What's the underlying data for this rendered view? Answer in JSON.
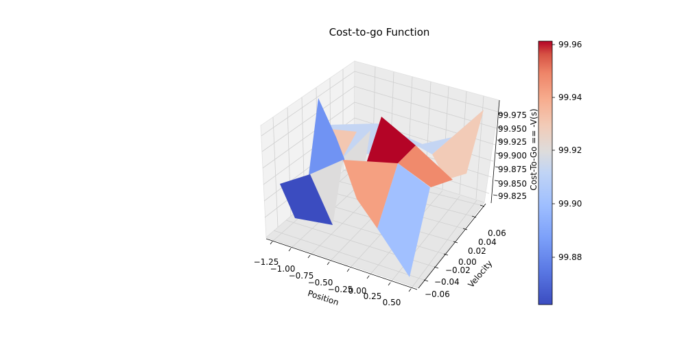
{
  "chart_data": {
    "type": "surface3d",
    "title": "Cost-to-go Function",
    "xlabel": "Position",
    "ylabel": "Velocity",
    "zlabel": "Cost-To-Go == -V(s)",
    "colormap": "coolwarm",
    "x_ticks": [
      "−1.25",
      "−1.00",
      "−0.75",
      "−0.50",
      "−0.25",
      "0.00",
      "0.25",
      "0.50"
    ],
    "y_ticks": [
      "−0.06",
      "−0.04",
      "−0.02",
      "0.00",
      "0.02",
      "0.04",
      "0.06"
    ],
    "z_ticks": [
      "99.825",
      "99.850",
      "99.875",
      "99.900",
      "99.925",
      "99.950",
      "99.975"
    ],
    "colorbar_ticks": [
      "99.88",
      "99.90",
      "99.92",
      "99.94",
      "99.96"
    ],
    "colorbar_range": [
      99.862,
      99.962
    ],
    "x_grid": [
      -1.2,
      -0.35,
      0.5
    ],
    "y_grid": [
      -0.07,
      0.0,
      0.07
    ],
    "z_values": [
      [
        99.985,
        99.86,
        99.83
      ],
      [
        99.925,
        99.955,
        99.86
      ],
      [
        99.925,
        99.9,
        99.98
      ]
    ],
    "cell_colors": [
      [
        "#7093f3",
        "#cad8ef",
        "#3b4cc0",
        "#dddcdc"
      ],
      [
        "#f3c7b1",
        "#dddcdc",
        "#f5a081",
        "#a1c0ff"
      ],
      [
        "#b40426",
        "#f08a6c",
        "#f2cbb7",
        "#c4d5f3"
      ]
    ]
  }
}
